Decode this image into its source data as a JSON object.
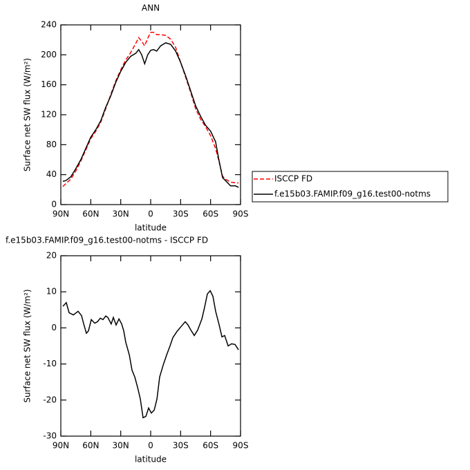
{
  "chart_data": [
    {
      "type": "line",
      "title": "ANN",
      "xlabel": "latitude",
      "ylabel": "Surface net SW flux (W/m²)",
      "x": [
        88,
        85,
        80,
        75,
        70,
        65,
        60,
        55,
        50,
        45,
        40,
        35,
        30,
        25,
        20,
        15,
        12,
        9,
        6,
        3,
        0,
        -3,
        -6,
        -10,
        -15,
        -20,
        -25,
        -30,
        -35,
        -40,
        -45,
        -50,
        -55,
        -60,
        -65,
        -68,
        -72,
        -75,
        -80,
        -85,
        -88
      ],
      "series": [
        {
          "name": "ISCCP FD",
          "color": "#ff0000",
          "dash": true,
          "values": [
            24,
            28,
            34,
            45,
            58,
            73,
            88,
            98,
            110,
            128,
            147,
            165,
            180,
            193,
            203,
            215,
            223,
            218,
            212,
            222,
            230,
            230,
            227,
            227,
            226,
            221,
            210,
            190,
            170,
            150,
            128,
            114,
            104,
            92,
            75,
            60,
            38,
            34,
            30,
            29,
            29
          ]
        },
        {
          "name": "f.e15b03.FAMIP.f09_g16.test00-notms",
          "color": "#000000",
          "dash": false,
          "values": [
            31,
            32,
            37,
            48,
            60,
            75,
            90,
            100,
            112,
            130,
            145,
            163,
            178,
            190,
            198,
            202,
            207,
            200,
            188,
            200,
            206,
            207,
            205,
            212,
            216,
            214,
            205,
            190,
            172,
            152,
            132,
            118,
            106,
            98,
            84,
            62,
            36,
            32,
            25,
            25,
            23
          ]
        }
      ],
      "xlim": [
        90,
        -90
      ],
      "xticks": [
        {
          "value": 90,
          "label": "90N"
        },
        {
          "value": 60,
          "label": "60N"
        },
        {
          "value": 30,
          "label": "30N"
        },
        0,
        {
          "value": -30,
          "label": "30S"
        },
        {
          "value": -60,
          "label": "60S"
        },
        {
          "value": -90,
          "label": "90S"
        }
      ],
      "ylim": [
        0,
        240
      ],
      "yticks": [
        0,
        40,
        80,
        120,
        160,
        200,
        240
      ],
      "legend": "right"
    },
    {
      "type": "line",
      "title": "f.e15b03.FAMIP.f09_g16.test00-notms - ISCCP FD",
      "xlabel": "latitude",
      "ylabel": "Surface net SW flux (W/m²)",
      "x": [
        87.9,
        84.5,
        81.7,
        77.5,
        72.7,
        69.2,
        67.1,
        64.4,
        62.3,
        59.5,
        56.1,
        53.3,
        50.5,
        47.8,
        45,
        42.9,
        39.5,
        37.4,
        34.6,
        31.8,
        29.1,
        27,
        24.9,
        21.4,
        18.7,
        15.9,
        13.1,
        10.4,
        7.6,
        4.8,
        2.1,
        -0.7,
        -3.5,
        -6.3,
        -9,
        -12.5,
        -16,
        -19.4,
        -22.2,
        -26.3,
        -30.5,
        -34.6,
        -37.4,
        -40.2,
        -43.7,
        -47.1,
        -51.3,
        -54,
        -56.8,
        -59.6,
        -62.3,
        -65.1,
        -68.6,
        -71.4,
        -74.1,
        -77.6,
        -81.1,
        -84.5,
        -88
      ],
      "color": "#000000",
      "values": [
        6,
        7,
        4.2,
        3.6,
        4.6,
        3.4,
        1.1,
        -1.5,
        -0.8,
        2.3,
        1.3,
        1.7,
        2.7,
        2.3,
        3.3,
        2.9,
        1.1,
        2.9,
        0.8,
        2.5,
        1.1,
        -0.8,
        -4,
        -7.5,
        -11.7,
        -13.6,
        -16.5,
        -19.7,
        -24.9,
        -24.5,
        -22.2,
        -23.6,
        -22.8,
        -19.7,
        -13.6,
        -10.3,
        -7.5,
        -5,
        -2.7,
        -1,
        0.4,
        1.7,
        0.8,
        -0.6,
        -2.1,
        -0.6,
        2.5,
        5.7,
        9.4,
        10.3,
        8.8,
        4.6,
        0.8,
        -2.5,
        -2.1,
        -5,
        -4.4,
        -4.6,
        -6.1
      ],
      "xlim": [
        90,
        -90
      ],
      "xticks": [
        {
          "value": 90,
          "label": "90N"
        },
        {
          "value": 60,
          "label": "60N"
        },
        {
          "value": 30,
          "label": "30N"
        },
        0,
        {
          "value": -30,
          "label": "30S"
        },
        {
          "value": -60,
          "label": "60S"
        },
        {
          "value": -90,
          "label": "90S"
        }
      ],
      "ylim": [
        -30,
        20
      ],
      "yticks": [
        -30,
        -20,
        -10,
        0,
        10,
        20
      ]
    }
  ]
}
